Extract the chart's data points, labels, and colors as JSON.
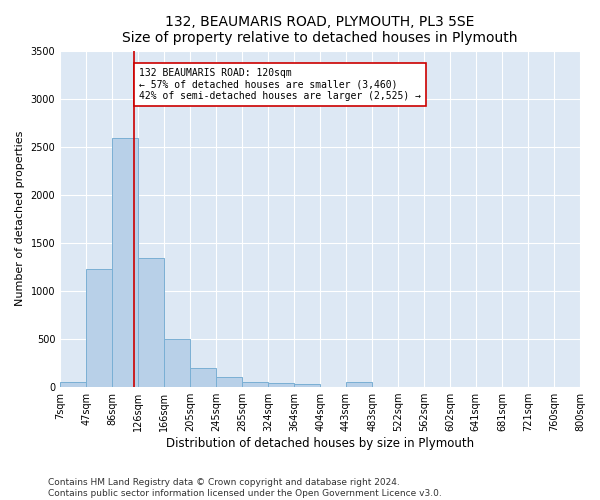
{
  "title": "132, BEAUMARIS ROAD, PLYMOUTH, PL3 5SE",
  "subtitle": "Size of property relative to detached houses in Plymouth",
  "xlabel": "Distribution of detached houses by size in Plymouth",
  "ylabel": "Number of detached properties",
  "bar_color": "#b8d0e8",
  "bar_edge_color": "#7aafd4",
  "background_color": "#dde8f4",
  "fig_background_color": "#ffffff",
  "grid_color": "#ffffff",
  "bin_labels": [
    "7sqm",
    "47sqm",
    "86sqm",
    "126sqm",
    "166sqm",
    "205sqm",
    "245sqm",
    "285sqm",
    "324sqm",
    "364sqm",
    "404sqm",
    "443sqm",
    "483sqm",
    "522sqm",
    "562sqm",
    "602sqm",
    "641sqm",
    "681sqm",
    "721sqm",
    "760sqm",
    "800sqm"
  ],
  "bar_values": [
    55,
    1230,
    2590,
    1340,
    500,
    195,
    105,
    50,
    45,
    30,
    0,
    50,
    0,
    0,
    0,
    0,
    0,
    0,
    0,
    0
  ],
  "bin_edges": [
    7,
    47,
    86,
    126,
    166,
    205,
    245,
    285,
    324,
    364,
    404,
    443,
    483,
    522,
    562,
    602,
    641,
    681,
    721,
    760,
    800
  ],
  "ylim": [
    0,
    3500
  ],
  "yticks": [
    0,
    500,
    1000,
    1500,
    2000,
    2500,
    3000,
    3500
  ],
  "property_size": 120,
  "vline_color": "#cc0000",
  "annotation_text": "132 BEAUMARIS ROAD: 120sqm\n← 57% of detached houses are smaller (3,460)\n42% of semi-detached houses are larger (2,525) →",
  "annotation_box_color": "#ffffff",
  "annotation_box_edge": "#cc0000",
  "footer_text": "Contains HM Land Registry data © Crown copyright and database right 2024.\nContains public sector information licensed under the Open Government Licence v3.0.",
  "title_fontsize": 10,
  "xlabel_fontsize": 8.5,
  "ylabel_fontsize": 8,
  "tick_fontsize": 7,
  "annot_fontsize": 7,
  "footer_fontsize": 6.5
}
